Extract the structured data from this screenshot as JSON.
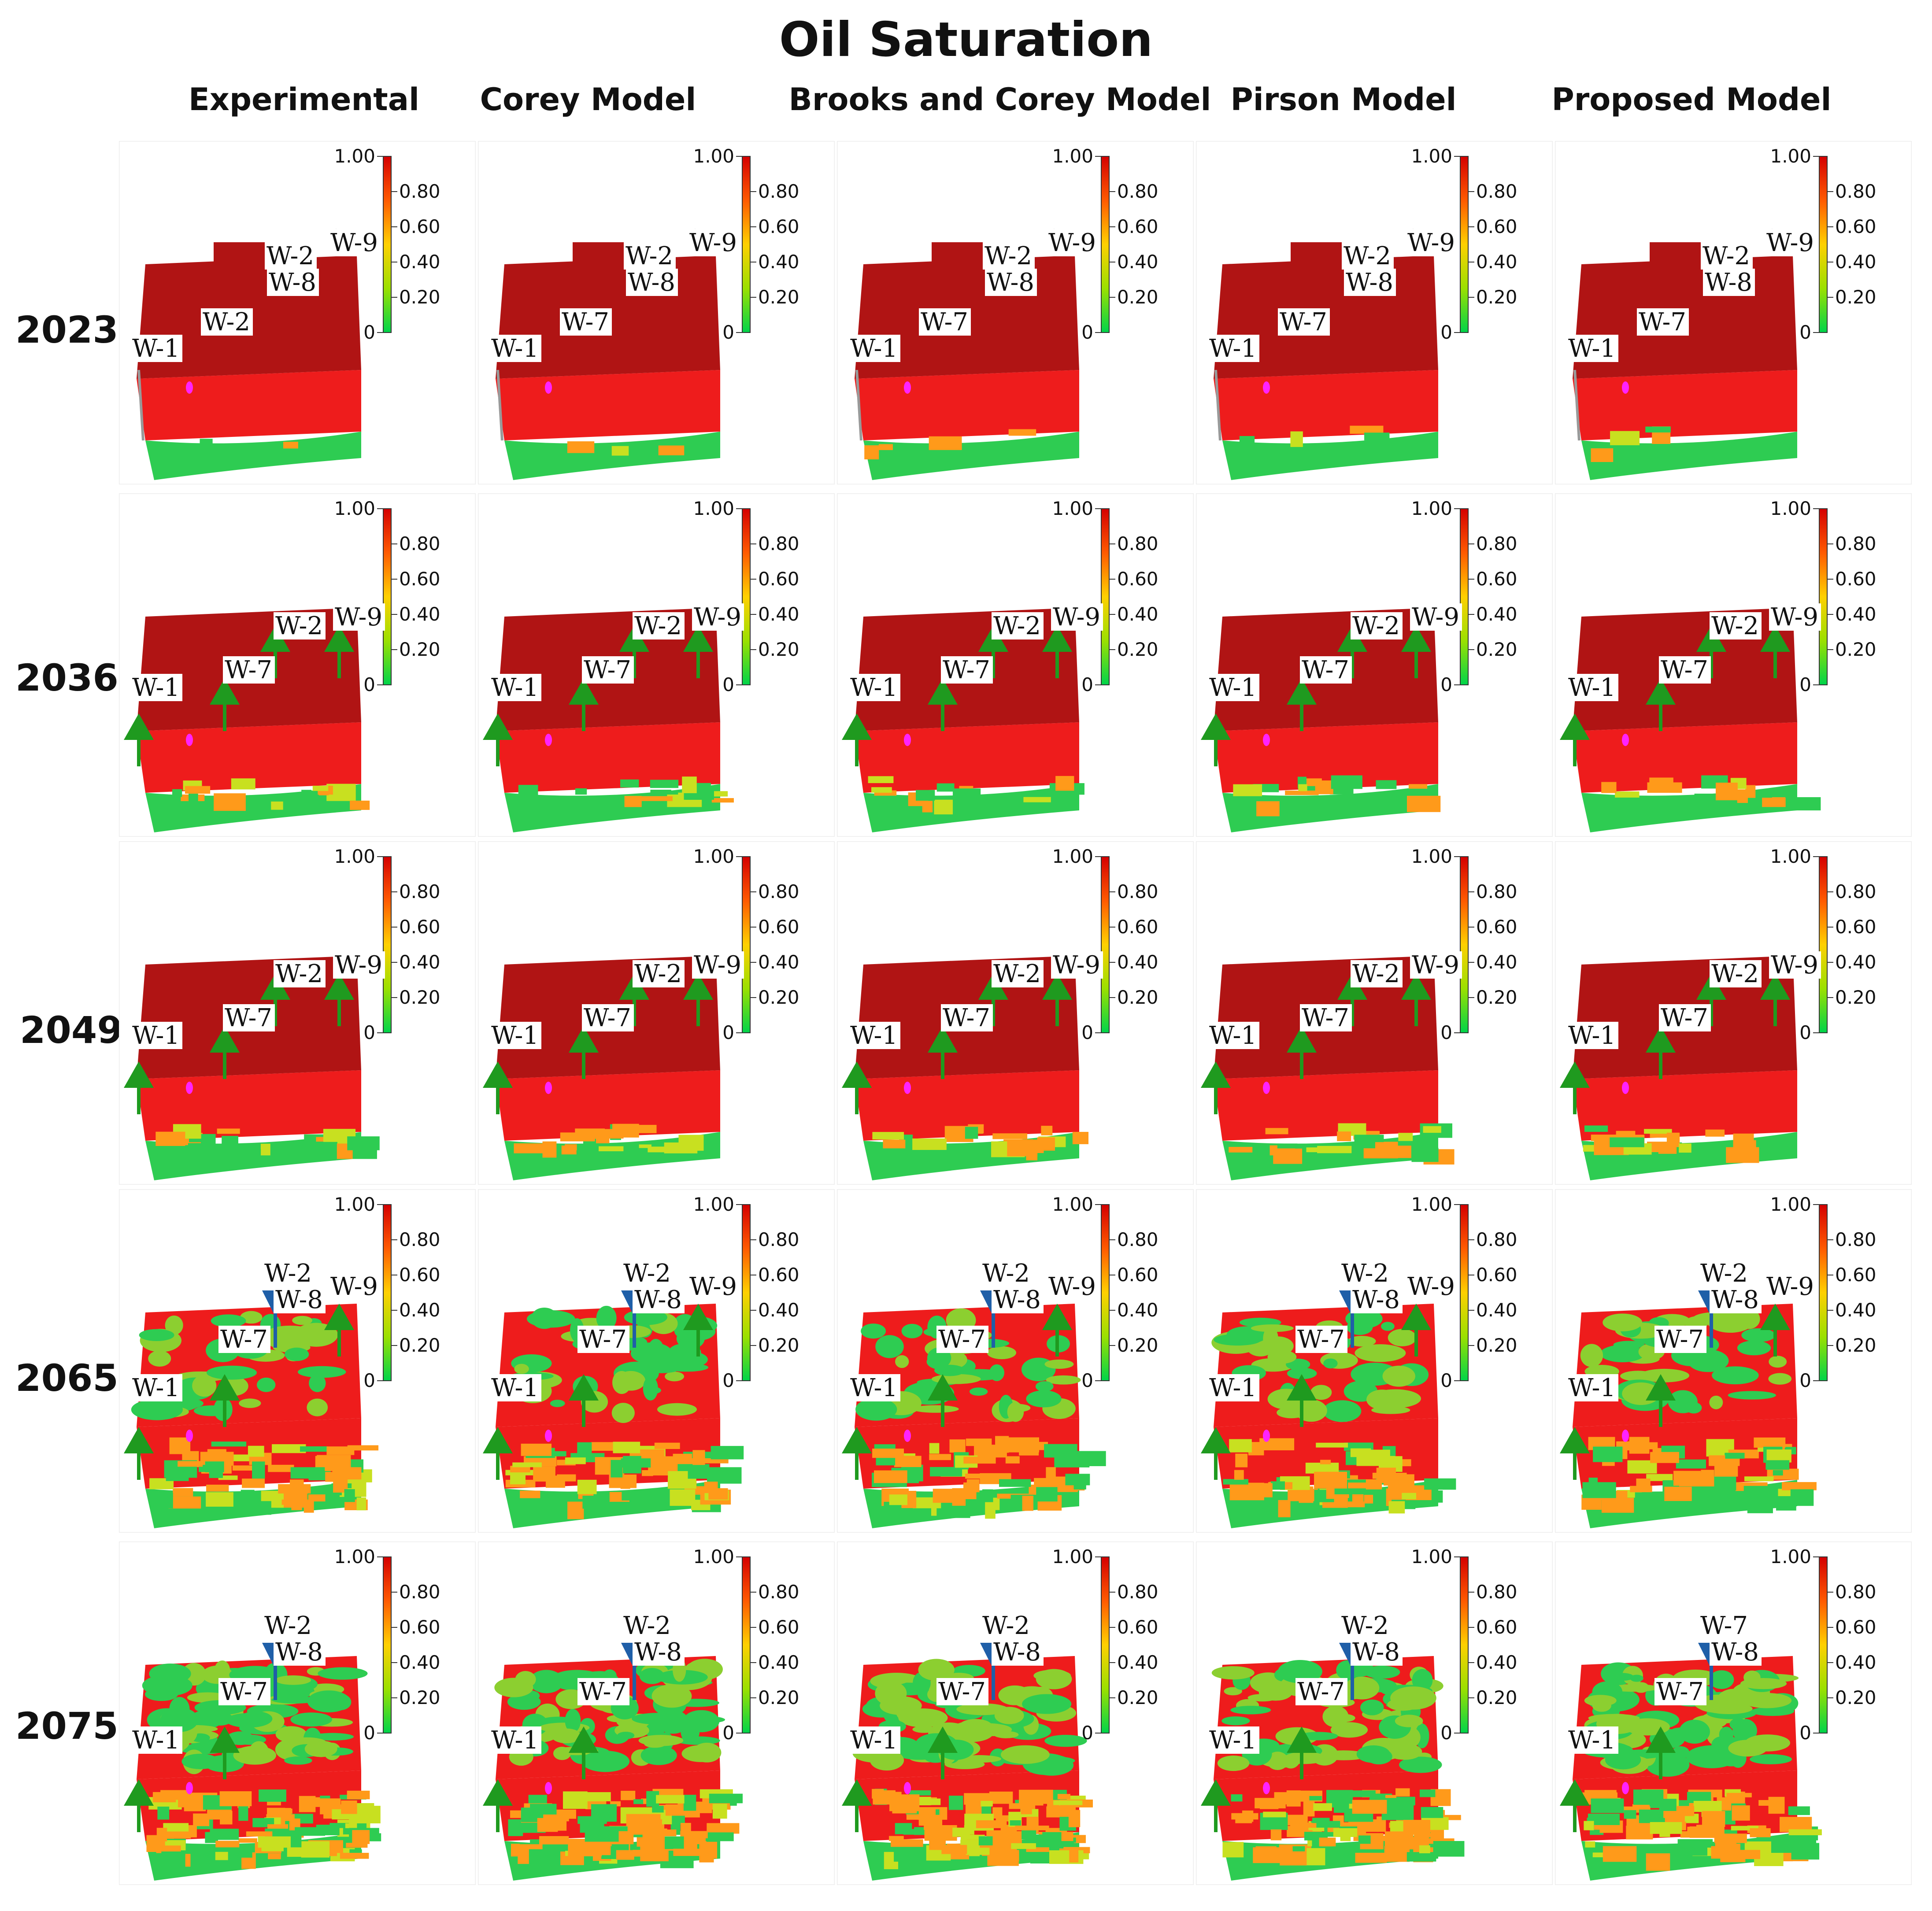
{
  "title": "Oil Saturation",
  "columns": [
    "Experimental",
    "Corey Model",
    "Brooks and Corey Model",
    "Pirson Model",
    "Proposed Model"
  ],
  "rows": [
    "2023",
    "2036",
    "2049",
    "2065",
    "2075"
  ],
  "colorbar": {
    "ticks": [
      "1.00",
      "0.80",
      "0.60",
      "0.40",
      "0.20",
      "0"
    ],
    "colors": [
      "#d40000",
      "#ff5a00",
      "#ffd000",
      "#9be000",
      "#00d44a"
    ]
  },
  "wells": {
    "2023": [
      "W-1",
      "W-2",
      "W-2",
      "W-8",
      "W-9"
    ],
    "2036": [
      "W-1",
      "W-7",
      "W-2",
      "W-9"
    ],
    "2049": [
      "W-1",
      "W-7",
      "W-2",
      "W-9"
    ],
    "2065": [
      "W-1",
      "W-7",
      "W-2",
      "W-8",
      "W-9"
    ],
    "2075": [
      "W-1",
      "W-7",
      "W-2",
      "W-8"
    ]
  },
  "well_label_overrides": {
    "2023": {
      "1": [
        "W-1",
        "W-7",
        "W-2",
        "W-8",
        "W-9"
      ],
      "2": [
        "W-1",
        "W-7",
        "W-2",
        "W-8",
        "W-9"
      ],
      "3": [
        "W-1",
        "W-7",
        "W-2",
        "W-8",
        "W-9"
      ],
      "4": [
        "W-1",
        "W-7",
        "W-2",
        "W-8",
        "W-9"
      ]
    },
    "2075": {
      "4": [
        "W-1",
        "W-7",
        "W-7",
        "W-8"
      ]
    }
  },
  "icons": {
    "producer": "green-arrow-well-icon",
    "injector": "blue-arrow-well-icon",
    "marker": "magenta-marker-icon"
  },
  "colors": {
    "oil_top": "#b01414",
    "oil_side": "#ee1c1c",
    "water": "#2ecc52",
    "transition": "#ff9a1a",
    "producer_arrow": "#1f9a1f",
    "injector_arrow": "#1f5fa8",
    "marker": "#ff22ff"
  }
}
